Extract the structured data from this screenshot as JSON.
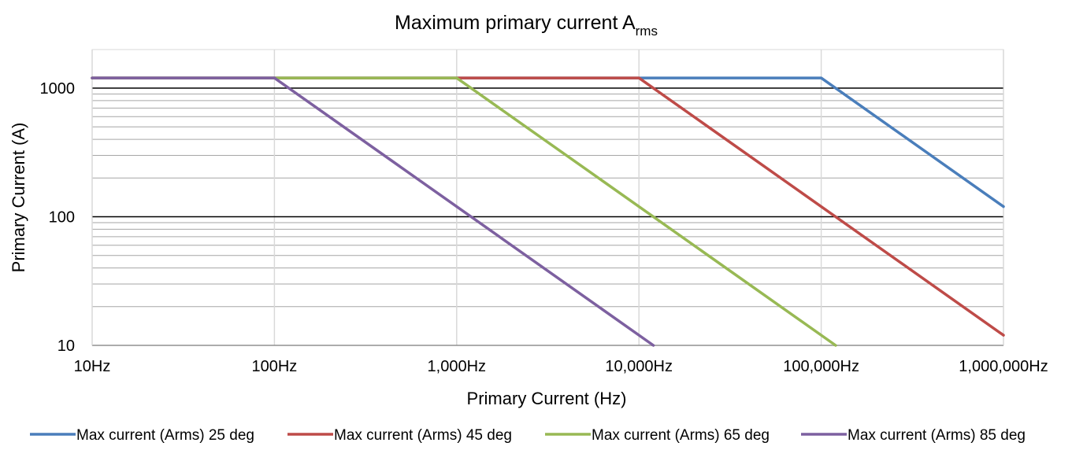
{
  "chart_data": {
    "type": "line",
    "title": "Maximum primary current A",
    "title_subscript": "rms",
    "xlabel": "Primary Current (Hz)",
    "ylabel": "Primary Current (A)",
    "x_scale": "log",
    "y_scale": "log",
    "xlim": [
      10,
      1000000
    ],
    "ylim": [
      10,
      2000
    ],
    "x_ticks": [
      10,
      100,
      1000,
      10000,
      100000,
      1000000
    ],
    "x_tick_labels": [
      "10Hz",
      "100Hz",
      "1,000Hz",
      "10,000Hz",
      "100,000Hz",
      "1,000,000Hz"
    ],
    "y_ticks": [
      10,
      100,
      1000
    ],
    "y_tick_labels": [
      "10",
      "100",
      "1000"
    ],
    "grid": true,
    "legend_position": "bottom",
    "series": [
      {
        "name": "Max current (Arms) 25 deg",
        "color": "#4a7ebb",
        "x": [
          10,
          100000,
          1000000
        ],
        "y": [
          1200,
          1200,
          120
        ]
      },
      {
        "name": "Max current (Arms) 45 deg",
        "color": "#be4b48",
        "x": [
          10,
          10000,
          1000000
        ],
        "y": [
          1200,
          1200,
          12
        ]
      },
      {
        "name": "Max current (Arms) 65 deg",
        "color": "#98b954",
        "x": [
          10,
          1000,
          120000
        ],
        "y": [
          1200,
          1200,
          10
        ]
      },
      {
        "name": "Max current (Arms) 85 deg",
        "color": "#7d60a0",
        "x": [
          10,
          100,
          12000
        ],
        "y": [
          1200,
          1200,
          10
        ]
      }
    ]
  }
}
